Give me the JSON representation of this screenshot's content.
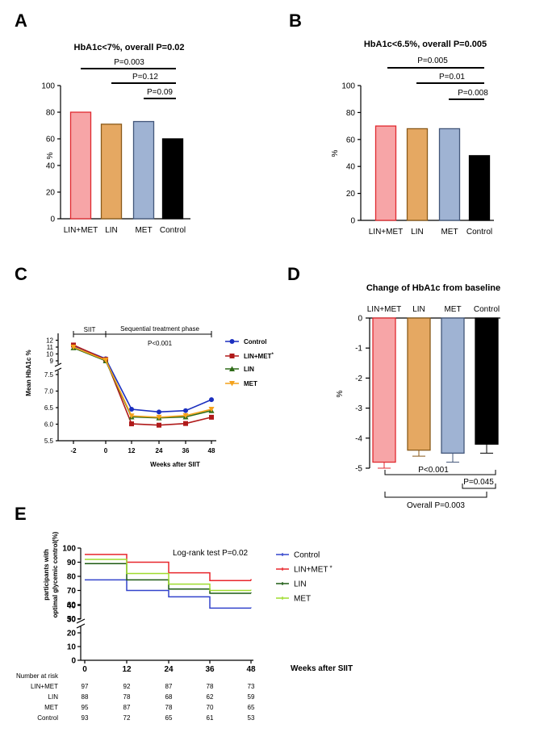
{
  "colors": {
    "lin_met": "#f7a5a7",
    "lin_met_border": "#e0292f",
    "lin": "#e5a862",
    "lin_border": "#8a5a1a",
    "met": "#9fb3d3",
    "met_border": "#43577a",
    "control": "#000000",
    "line_control": "#1b2fbf",
    "line_linmet": "#b01a1a",
    "line_lin": "#2e6b18",
    "line_met": "#f4a21c",
    "km_control": "#3344cc",
    "km_linmet": "#e8262b",
    "km_lin": "#1c5a12",
    "km_met": "#9fdc2e"
  },
  "panel_labels": {
    "a": "A",
    "b": "B",
    "c": "C",
    "d": "D",
    "e": "E"
  },
  "chart_data": [
    {
      "panel": "A",
      "type": "bar",
      "title": "HbA1c<7%, overall P=0.02",
      "ylabel": "%",
      "ylim": [
        0,
        100
      ],
      "yticks": [
        0,
        20,
        40,
        60,
        80,
        100
      ],
      "categories": [
        "LIN+MET",
        "LIN",
        "MET",
        "Control"
      ],
      "values": [
        80,
        71,
        73,
        60
      ],
      "comparisons": [
        "P=0.003",
        "P=0.12",
        "P=0.09"
      ]
    },
    {
      "panel": "B",
      "type": "bar",
      "title": "HbA1c<6.5%, overall P=0.005",
      "ylabel": "%",
      "ylim": [
        0,
        100
      ],
      "yticks": [
        0,
        20,
        40,
        60,
        80,
        100
      ],
      "categories": [
        "LIN+MET",
        "LIN",
        "MET",
        "Control"
      ],
      "values": [
        70,
        68,
        68,
        48
      ],
      "comparisons": [
        "P=0.005",
        "P=0.01",
        "P=0.008"
      ]
    },
    {
      "panel": "C",
      "type": "line",
      "ylabel": "Mean HbA1c %",
      "xlabel": "Weeks after SIIT",
      "x": [
        -2,
        0,
        12,
        24,
        36,
        48
      ],
      "xticks": [
        "-2",
        "0",
        "12",
        "24",
        "36",
        "48"
      ],
      "yticks_upper": [
        "9",
        "10",
        "11",
        "12"
      ],
      "yticks_lower": [
        "5.5",
        "6.0",
        "6.5",
        "7.0",
        "7.5"
      ],
      "phase_labels": [
        "SIIT",
        "Sequential treatment phase"
      ],
      "annotation": "P<0.001",
      "series": [
        {
          "name": "Control",
          "values": [
            11.2,
            9.3,
            6.45,
            6.37,
            6.41,
            6.74
          ]
        },
        {
          "name": "LIN+MET",
          "sup": "*",
          "values": [
            11.3,
            9.2,
            6.01,
            5.97,
            6.02,
            6.21
          ]
        },
        {
          "name": "LIN",
          "values": [
            10.9,
            9.0,
            6.22,
            6.19,
            6.22,
            6.41
          ]
        },
        {
          "name": "MET",
          "values": [
            11.0,
            9.1,
            6.25,
            6.21,
            6.26,
            6.45
          ]
        }
      ]
    },
    {
      "panel": "D",
      "type": "bar",
      "title": "Change of HbA1c from baseline",
      "ylabel": "%",
      "ylim": [
        -5,
        0
      ],
      "yticks": [
        "0",
        "-1",
        "-2",
        "-3",
        "-4",
        "-5"
      ],
      "categories": [
        "LIN+MET",
        "LIN",
        "MET",
        "Control"
      ],
      "values": [
        -4.8,
        -4.4,
        -4.5,
        -4.2
      ],
      "errors": [
        0.2,
        0.2,
        0.3,
        0.3
      ],
      "comparisons": [
        "P<0.001",
        "P=0.045",
        "Overall P=0.003"
      ]
    },
    {
      "panel": "E",
      "type": "line",
      "subtype": "kaplan-meier",
      "ylabel_lines": [
        "participants with",
        "optimal glycemic control(%)"
      ],
      "xlabel": "Weeks after SIIT",
      "x": [
        0,
        12,
        24,
        36,
        48
      ],
      "xticks": [
        "0",
        "12",
        "24",
        "36",
        "48"
      ],
      "yticks_upper": [
        "50",
        "60",
        "70",
        "80",
        "90",
        "100"
      ],
      "yticks_lower": [
        "0",
        "10",
        "20",
        "30",
        "40"
      ],
      "annotation": "Log-rank test P=0.02",
      "series": [
        {
          "name": "Control",
          "values": [
            77.5,
            70,
            65.5,
            57.5,
            58
          ]
        },
        {
          "name": "LIN+MET",
          "sup": "*",
          "values": [
            95.5,
            90,
            82.5,
            77,
            78
          ]
        },
        {
          "name": "LIN",
          "values": [
            89,
            77.5,
            71,
            68,
            68.5
          ]
        },
        {
          "name": "MET",
          "values": [
            92,
            82,
            74.5,
            70,
            70.5
          ]
        }
      ],
      "risk_table": {
        "title": "Number at risk",
        "rows": [
          {
            "label": "LIN+MET",
            "values": [
              "97",
              "92",
              "87",
              "78",
              "73"
            ]
          },
          {
            "label": "LIN",
            "values": [
              "88",
              "78",
              "68",
              "62",
              "59"
            ]
          },
          {
            "label": "MET",
            "values": [
              "95",
              "87",
              "78",
              "70",
              "65"
            ]
          },
          {
            "label": "Control",
            "values": [
              "93",
              "72",
              "65",
              "61",
              "53"
            ]
          }
        ]
      }
    }
  ]
}
